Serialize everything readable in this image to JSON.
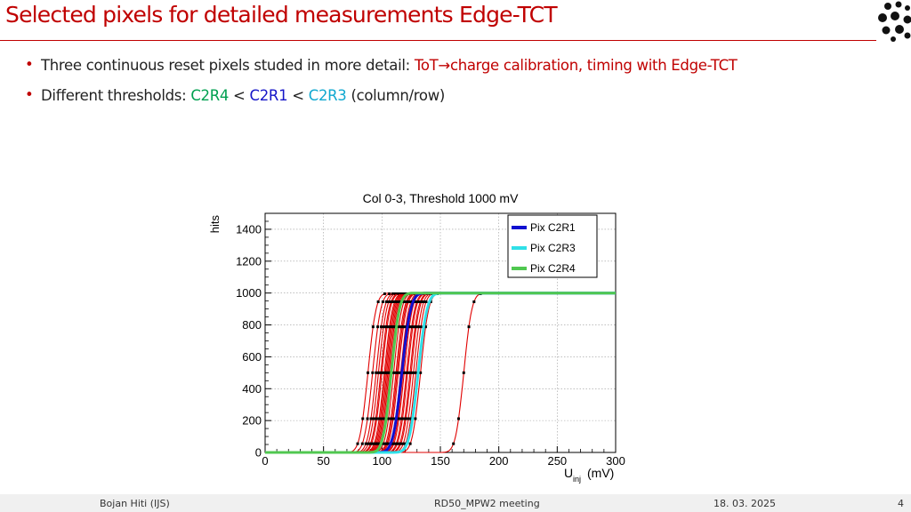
{
  "slide": {
    "title": "Selected pixels for detailed measurements Edge-TCT",
    "bullets": [
      {
        "prefix": "Three continuous reset pixels studed in more detail: ",
        "highlight": "ToT",
        "arrow": "→",
        "suffix": "charge calibration, timing with Edge-TCT"
      },
      {
        "prefix": "Different thresholds: ",
        "c1": "C2R4",
        "sep1": " < ",
        "c2": "C2R1",
        "sep2": " < ",
        "c3": "C2R3",
        "suffix": " (column/row)"
      }
    ],
    "footer": {
      "author": "Bojan Hiti (IJS)",
      "meeting": "RD50_MPW2 meeting",
      "date": "18. 03. 2025",
      "page": "4"
    }
  },
  "colors": {
    "accent": "#c00000",
    "green": "#00a050",
    "blue": "#1515c8",
    "cyan": "#10a8d0"
  },
  "chart_data": {
    "type": "line",
    "title": "Col 0-3, Threshold 1000 mV",
    "ylabel": "hits",
    "xlabel_main": "U",
    "xlabel_sub": "inj",
    "xlabel_unit": "(mV)",
    "xlim": [
      0,
      300
    ],
    "ylim": [
      0,
      1500
    ],
    "xticks": [
      0,
      50,
      100,
      150,
      200,
      250,
      300
    ],
    "yticks": [
      0,
      200,
      400,
      600,
      800,
      1000,
      1200,
      1400
    ],
    "grid": true,
    "legend_position": "top-right",
    "legend": [
      {
        "name": "Pix C2R1",
        "color": "#1010d0"
      },
      {
        "name": "Pix C2R3",
        "color": "#30e0e8"
      },
      {
        "name": "Pix C2R4",
        "color": "#50c850"
      }
    ],
    "plateau": 1000,
    "series": [
      {
        "name": "Pix C2R1",
        "color": "#1010d0",
        "mu": 117,
        "sigma": 6,
        "width": 3
      },
      {
        "name": "Pix C2R3",
        "color": "#30e0e8",
        "mu": 131,
        "sigma": 6,
        "width": 3
      },
      {
        "name": "Pix C2R4",
        "color": "#50c850",
        "mu": 108,
        "sigma": 5.5,
        "width": 3
      }
    ],
    "other_pixels": {
      "color": "#e00000",
      "mus": [
        88,
        92,
        95,
        97,
        99,
        100,
        102,
        103,
        104,
        105,
        106,
        107,
        110,
        112,
        113,
        114,
        116,
        118,
        119,
        121,
        122,
        124,
        125,
        127,
        129,
        133,
        170
      ],
      "sigma": 5.5
    }
  }
}
